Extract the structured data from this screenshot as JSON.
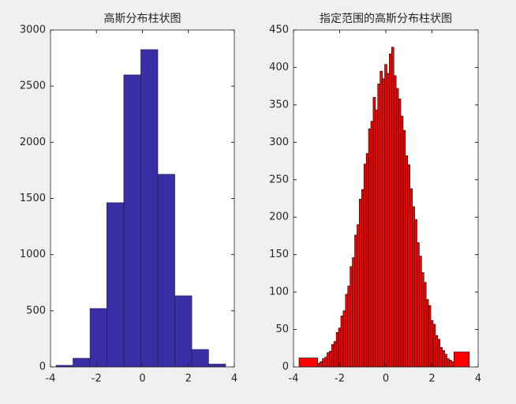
{
  "chart_data": [
    {
      "type": "histogram",
      "title": "高斯分布柱状图",
      "color": "#3a2ea6",
      "edgecolor": "#1a1a40",
      "bins": [
        -3.76,
        -3.02,
        -2.28,
        -1.55,
        -0.81,
        -0.07,
        0.67,
        1.41,
        2.15,
        2.88,
        3.62
      ],
      "values": [
        14,
        77,
        520,
        1462,
        2600,
        2825,
        1715,
        633,
        155,
        25
      ],
      "xlim": [
        -4,
        4
      ],
      "xticks": [
        -4,
        -2,
        0,
        2,
        4
      ],
      "ylim": [
        0,
        3000
      ],
      "yticks": [
        0,
        500,
        1000,
        1500,
        2000,
        2500,
        3000
      ]
    },
    {
      "type": "histogram",
      "title": "指定范围的高斯分布柱状图",
      "color": "#ff0000",
      "edgecolor": "#000000",
      "bins": [
        -3.76,
        -2.95,
        -2.85,
        -2.75,
        -2.65,
        -2.55,
        -2.45,
        -2.35,
        -2.25,
        -2.15,
        -2.05,
        -1.95,
        -1.85,
        -1.75,
        -1.65,
        -1.55,
        -1.45,
        -1.35,
        -1.25,
        -1.15,
        -1.05,
        -0.95,
        -0.85,
        -0.75,
        -0.65,
        -0.55,
        -0.45,
        -0.35,
        -0.25,
        -0.15,
        -0.05,
        0.05,
        0.15,
        0.25,
        0.35,
        0.45,
        0.55,
        0.65,
        0.75,
        0.85,
        0.95,
        1.05,
        1.15,
        1.25,
        1.35,
        1.45,
        1.55,
        1.65,
        1.75,
        1.85,
        1.95,
        2.05,
        2.15,
        2.25,
        2.35,
        2.45,
        2.55,
        2.65,
        2.75,
        2.85,
        2.95,
        3.62
      ],
      "values": [
        12,
        5,
        7,
        11,
        13,
        19,
        21,
        30,
        34,
        46,
        52,
        68,
        75,
        97,
        108,
        134,
        146,
        176,
        190,
        224,
        237,
        271,
        285,
        318,
        328,
        360,
        343,
        378,
        395,
        385,
        404,
        392,
        418,
        427,
        389,
        372,
        358,
        335,
        316,
        282,
        270,
        238,
        214,
        197,
        166,
        148,
        126,
        113,
        90,
        82,
        62,
        57,
        42,
        37,
        26,
        22,
        17,
        11,
        9,
        7,
        20
      ],
      "xlim": [
        -4,
        4
      ],
      "xticks": [
        -4,
        -2,
        0,
        2,
        4
      ],
      "ylim": [
        0,
        450
      ],
      "yticks": [
        0,
        50,
        100,
        150,
        200,
        250,
        300,
        350,
        400,
        450
      ]
    }
  ]
}
